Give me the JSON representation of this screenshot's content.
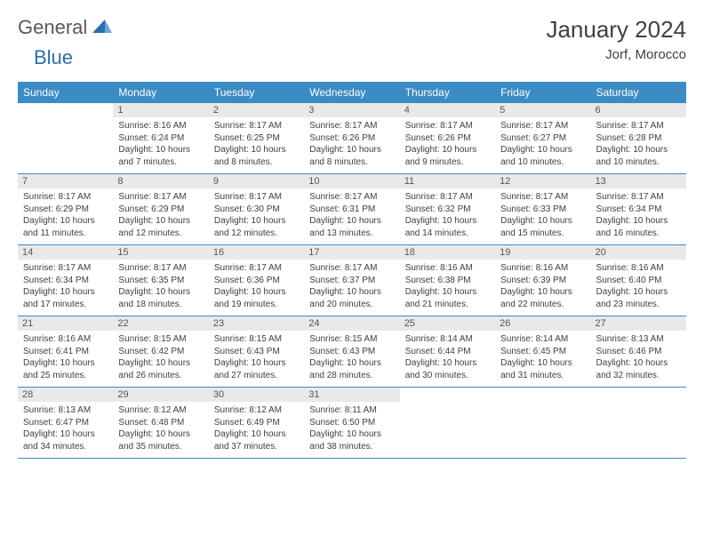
{
  "logo": {
    "general": "General",
    "blue": "Blue"
  },
  "title": "January 2024",
  "location": "Jorf, Morocco",
  "colors": {
    "header_bg": "#3b8bc4",
    "header_text": "#ffffff",
    "daybar_bg": "#e9e9e9",
    "border": "#3b8bc4",
    "logo_general": "#5a5a5a",
    "logo_blue": "#2a6db0",
    "body_text": "#404040"
  },
  "daysOfWeek": [
    "Sunday",
    "Monday",
    "Tuesday",
    "Wednesday",
    "Thursday",
    "Friday",
    "Saturday"
  ],
  "weeks": [
    [
      {
        "n": "",
        "sunrise": "",
        "sunset": "",
        "daylight": ""
      },
      {
        "n": "1",
        "sunrise": "8:16 AM",
        "sunset": "6:24 PM",
        "daylight": "10 hours and 7 minutes."
      },
      {
        "n": "2",
        "sunrise": "8:17 AM",
        "sunset": "6:25 PM",
        "daylight": "10 hours and 8 minutes."
      },
      {
        "n": "3",
        "sunrise": "8:17 AM",
        "sunset": "6:26 PM",
        "daylight": "10 hours and 8 minutes."
      },
      {
        "n": "4",
        "sunrise": "8:17 AM",
        "sunset": "6:26 PM",
        "daylight": "10 hours and 9 minutes."
      },
      {
        "n": "5",
        "sunrise": "8:17 AM",
        "sunset": "6:27 PM",
        "daylight": "10 hours and 10 minutes."
      },
      {
        "n": "6",
        "sunrise": "8:17 AM",
        "sunset": "6:28 PM",
        "daylight": "10 hours and 10 minutes."
      }
    ],
    [
      {
        "n": "7",
        "sunrise": "8:17 AM",
        "sunset": "6:29 PM",
        "daylight": "10 hours and 11 minutes."
      },
      {
        "n": "8",
        "sunrise": "8:17 AM",
        "sunset": "6:29 PM",
        "daylight": "10 hours and 12 minutes."
      },
      {
        "n": "9",
        "sunrise": "8:17 AM",
        "sunset": "6:30 PM",
        "daylight": "10 hours and 12 minutes."
      },
      {
        "n": "10",
        "sunrise": "8:17 AM",
        "sunset": "6:31 PM",
        "daylight": "10 hours and 13 minutes."
      },
      {
        "n": "11",
        "sunrise": "8:17 AM",
        "sunset": "6:32 PM",
        "daylight": "10 hours and 14 minutes."
      },
      {
        "n": "12",
        "sunrise": "8:17 AM",
        "sunset": "6:33 PM",
        "daylight": "10 hours and 15 minutes."
      },
      {
        "n": "13",
        "sunrise": "8:17 AM",
        "sunset": "6:34 PM",
        "daylight": "10 hours and 16 minutes."
      }
    ],
    [
      {
        "n": "14",
        "sunrise": "8:17 AM",
        "sunset": "6:34 PM",
        "daylight": "10 hours and 17 minutes."
      },
      {
        "n": "15",
        "sunrise": "8:17 AM",
        "sunset": "6:35 PM",
        "daylight": "10 hours and 18 minutes."
      },
      {
        "n": "16",
        "sunrise": "8:17 AM",
        "sunset": "6:36 PM",
        "daylight": "10 hours and 19 minutes."
      },
      {
        "n": "17",
        "sunrise": "8:17 AM",
        "sunset": "6:37 PM",
        "daylight": "10 hours and 20 minutes."
      },
      {
        "n": "18",
        "sunrise": "8:16 AM",
        "sunset": "6:38 PM",
        "daylight": "10 hours and 21 minutes."
      },
      {
        "n": "19",
        "sunrise": "8:16 AM",
        "sunset": "6:39 PM",
        "daylight": "10 hours and 22 minutes."
      },
      {
        "n": "20",
        "sunrise": "8:16 AM",
        "sunset": "6:40 PM",
        "daylight": "10 hours and 23 minutes."
      }
    ],
    [
      {
        "n": "21",
        "sunrise": "8:16 AM",
        "sunset": "6:41 PM",
        "daylight": "10 hours and 25 minutes."
      },
      {
        "n": "22",
        "sunrise": "8:15 AM",
        "sunset": "6:42 PM",
        "daylight": "10 hours and 26 minutes."
      },
      {
        "n": "23",
        "sunrise": "8:15 AM",
        "sunset": "6:43 PM",
        "daylight": "10 hours and 27 minutes."
      },
      {
        "n": "24",
        "sunrise": "8:15 AM",
        "sunset": "6:43 PM",
        "daylight": "10 hours and 28 minutes."
      },
      {
        "n": "25",
        "sunrise": "8:14 AM",
        "sunset": "6:44 PM",
        "daylight": "10 hours and 30 minutes."
      },
      {
        "n": "26",
        "sunrise": "8:14 AM",
        "sunset": "6:45 PM",
        "daylight": "10 hours and 31 minutes."
      },
      {
        "n": "27",
        "sunrise": "8:13 AM",
        "sunset": "6:46 PM",
        "daylight": "10 hours and 32 minutes."
      }
    ],
    [
      {
        "n": "28",
        "sunrise": "8:13 AM",
        "sunset": "6:47 PM",
        "daylight": "10 hours and 34 minutes."
      },
      {
        "n": "29",
        "sunrise": "8:12 AM",
        "sunset": "6:48 PM",
        "daylight": "10 hours and 35 minutes."
      },
      {
        "n": "30",
        "sunrise": "8:12 AM",
        "sunset": "6:49 PM",
        "daylight": "10 hours and 37 minutes."
      },
      {
        "n": "31",
        "sunrise": "8:11 AM",
        "sunset": "6:50 PM",
        "daylight": "10 hours and 38 minutes."
      },
      {
        "n": "",
        "sunrise": "",
        "sunset": "",
        "daylight": ""
      },
      {
        "n": "",
        "sunrise": "",
        "sunset": "",
        "daylight": ""
      },
      {
        "n": "",
        "sunrise": "",
        "sunset": "",
        "daylight": ""
      }
    ]
  ],
  "labels": {
    "sunrise": "Sunrise:",
    "sunset": "Sunset:",
    "daylight": "Daylight:"
  }
}
